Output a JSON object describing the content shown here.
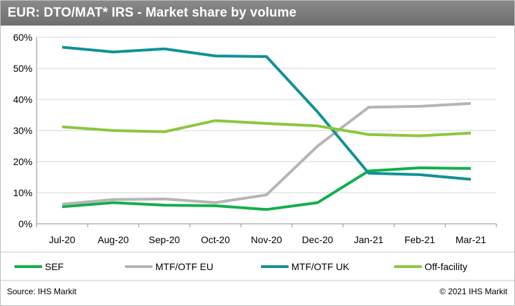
{
  "chart_data": {
    "type": "line",
    "title": "EUR: DTO/MAT* IRS - Market share by volume",
    "xlabel": "",
    "ylabel": "",
    "ylim": [
      0,
      60
    ],
    "yticks": [
      "0%",
      "10%",
      "20%",
      "30%",
      "40%",
      "50%",
      "60%"
    ],
    "categories": [
      "Jul-20",
      "Aug-20",
      "Sep-20",
      "Oct-20",
      "Nov-20",
      "Dec-20",
      "Jan-21",
      "Feb-21",
      "Mar-21"
    ],
    "grid": true,
    "legend_position": "bottom",
    "series": [
      {
        "name": "SEF",
        "color": "#10b04a",
        "values": [
          5.5,
          6.8,
          6.0,
          5.8,
          4.6,
          6.8,
          17.0,
          18.0,
          17.8
        ]
      },
      {
        "name": "MTF/OTF EU",
        "color": "#b5b5b5",
        "values": [
          6.3,
          7.8,
          8.0,
          6.8,
          9.3,
          25.0,
          37.5,
          37.8,
          38.7
        ]
      },
      {
        "name": "MTF/OTF UK",
        "color": "#0f9296",
        "values": [
          56.8,
          55.3,
          56.3,
          54.0,
          53.8,
          36.0,
          16.3,
          15.8,
          14.3
        ]
      },
      {
        "name": "Off-facility",
        "color": "#8cc63f",
        "values": [
          31.2,
          30.0,
          29.6,
          33.2,
          32.3,
          31.5,
          28.7,
          28.3,
          29.2
        ]
      }
    ]
  },
  "footer": {
    "source": "Source: IHS Markit",
    "copyright": "© 2021 IHS Markit"
  }
}
